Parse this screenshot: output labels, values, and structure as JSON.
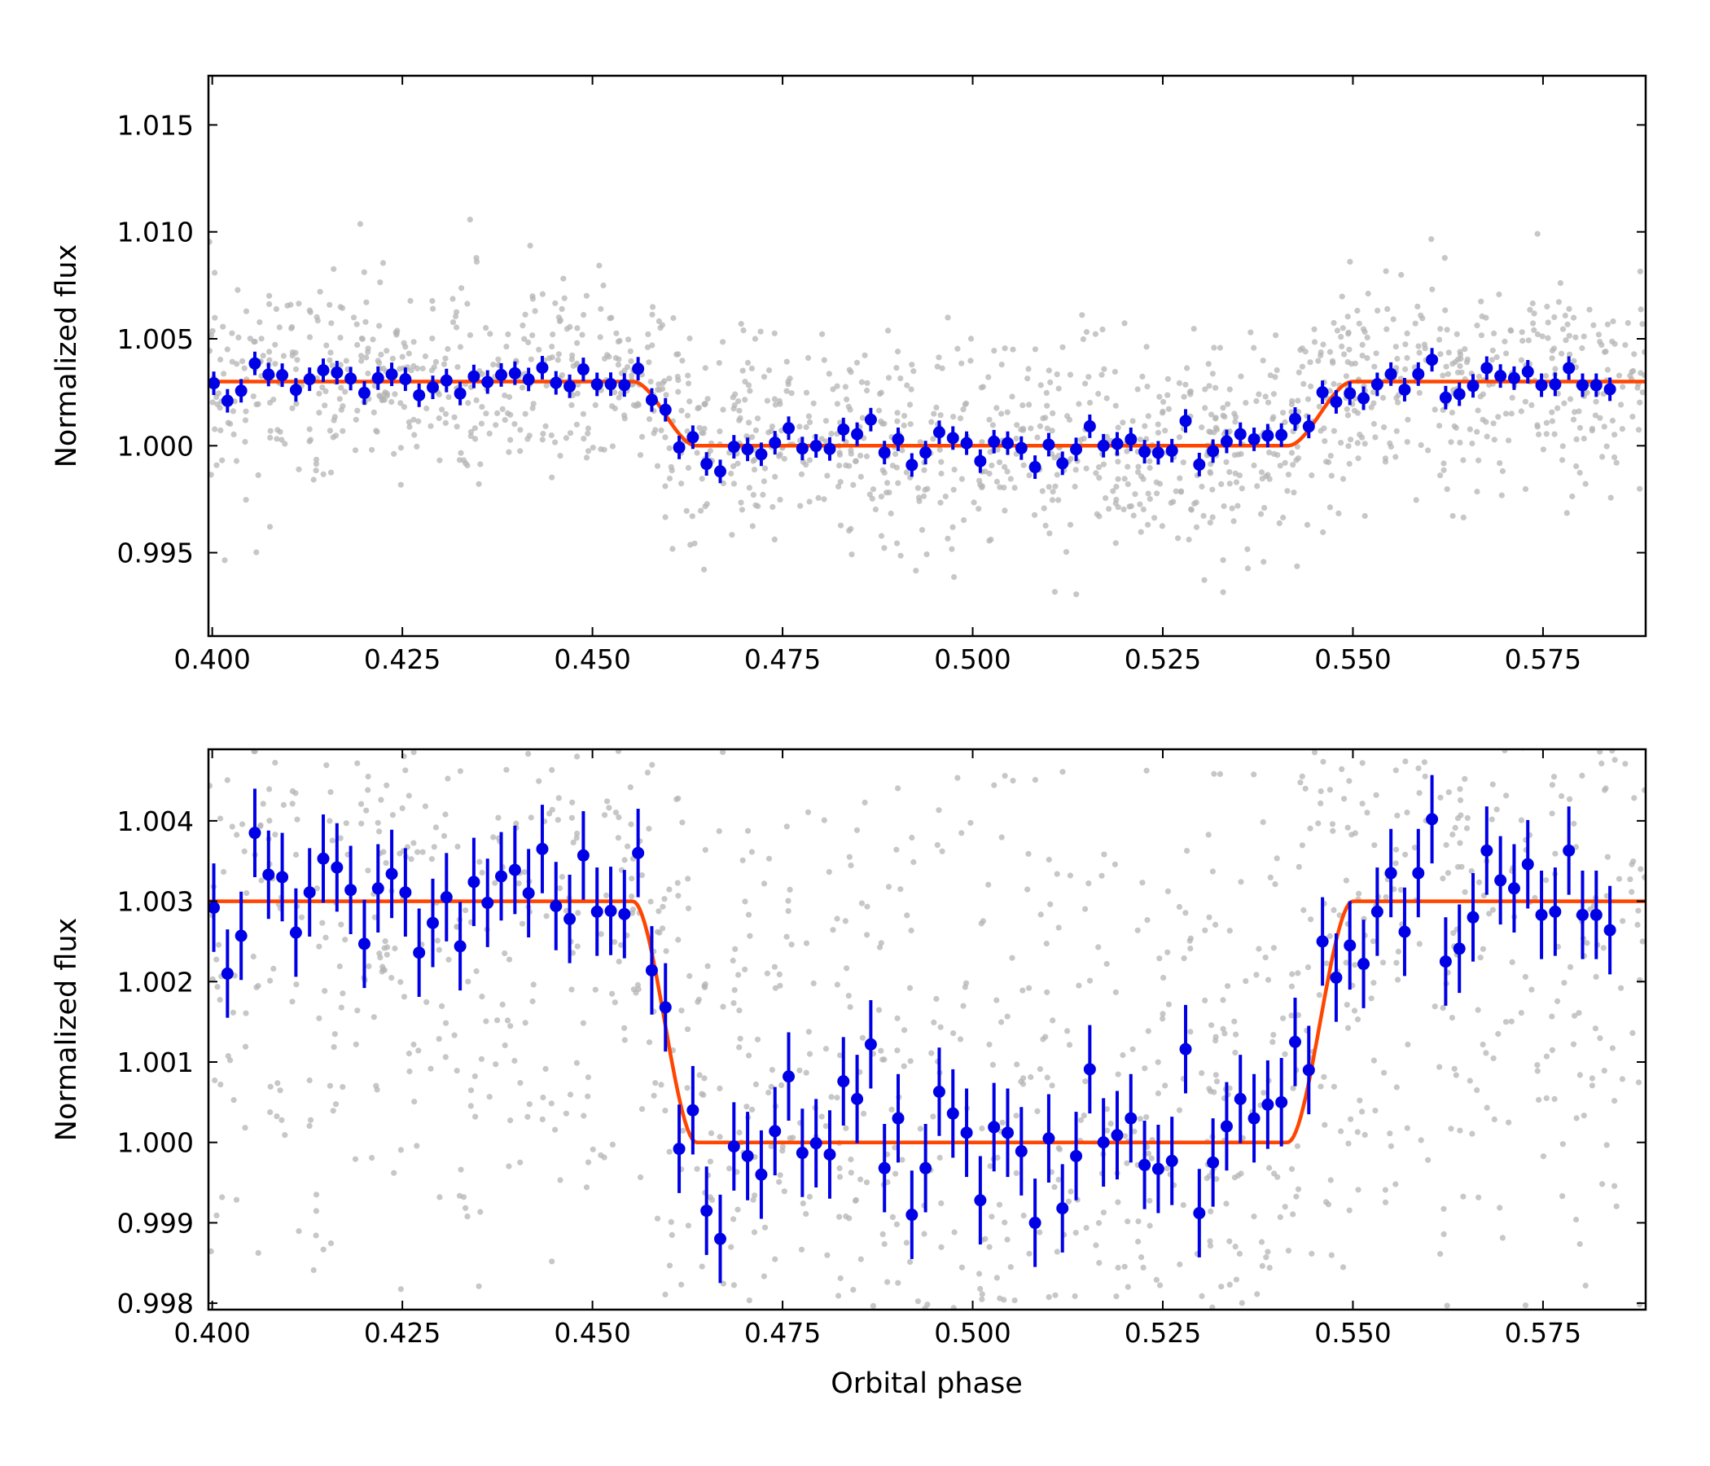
{
  "colors": {
    "background": "#ffffff",
    "raw_points": "#b4b4b4",
    "binned_points": "#0000e6",
    "model_line": "#ff4500",
    "axes": "#000000"
  },
  "chart_data": [
    {
      "type": "scatter",
      "panel": "top",
      "title": "",
      "xlabel": "",
      "ylabel": "Normalized flux",
      "xlim": [
        0.3995,
        0.5885
      ],
      "ylim": [
        0.9911,
        1.0173
      ],
      "xticks": [
        0.4,
        0.425,
        0.45,
        0.475,
        0.5,
        0.525,
        0.55,
        0.575
      ],
      "xtick_labels": [
        "0.400",
        "0.425",
        "0.450",
        "0.475",
        "0.500",
        "0.525",
        "0.550",
        "0.575"
      ],
      "yticks": [
        0.995,
        1.0,
        1.005,
        1.01,
        1.015
      ],
      "ytick_labels": [
        "0.995",
        "1.000",
        "1.005",
        "1.010",
        "1.015"
      ],
      "grid": false,
      "legend": "none",
      "series_style": [
        {
          "kind": "raw photometry",
          "marker": "small grey dots",
          "n_points": 1500
        },
        {
          "kind": "binned data",
          "marker": "blue circles with error bars"
        },
        {
          "kind": "transit model",
          "marker": "orange-red line"
        }
      ]
    },
    {
      "type": "scatter",
      "panel": "bottom",
      "title": "",
      "xlabel": "Orbital phase",
      "ylabel": "Normalized flux",
      "xlim": [
        0.3995,
        0.5885
      ],
      "ylim": [
        0.99792,
        1.00489
      ],
      "xticks": [
        0.4,
        0.425,
        0.45,
        0.475,
        0.5,
        0.525,
        0.55,
        0.575
      ],
      "xtick_labels": [
        "0.400",
        "0.425",
        "0.450",
        "0.475",
        "0.500",
        "0.525",
        "0.550",
        "0.575"
      ],
      "yticks": [
        0.998,
        0.999,
        1.0,
        1.001,
        1.002,
        1.003,
        1.004
      ],
      "ytick_labels": [
        "0.998",
        "0.999",
        "1.000",
        "1.001",
        "1.002",
        "1.003",
        "1.004"
      ],
      "grid": false,
      "legend": "none"
    }
  ],
  "binned_data": {
    "phase": [
      0.4002,
      0.402,
      0.4038,
      0.4056,
      0.4074,
      0.4092,
      0.411,
      0.4128,
      0.4146,
      0.4164,
      0.4182,
      0.42,
      0.4218,
      0.4236,
      0.4254,
      0.4272,
      0.429,
      0.4308,
      0.4326,
      0.4344,
      0.4362,
      0.438,
      0.4398,
      0.4416,
      0.4434,
      0.4452,
      0.447,
      0.4488,
      0.4506,
      0.4524,
      0.4542,
      0.456,
      0.4578,
      0.4596,
      0.4614,
      0.4632,
      0.465,
      0.4668,
      0.4686,
      0.4704,
      0.4722,
      0.474,
      0.4758,
      0.4776,
      0.4794,
      0.4812,
      0.483,
      0.4848,
      0.4866,
      0.4884,
      0.4902,
      0.492,
      0.4938,
      0.4956,
      0.4974,
      0.4992,
      0.501,
      0.5028,
      0.5046,
      0.5064,
      0.5082,
      0.51,
      0.5118,
      0.5136,
      0.5154,
      0.5172,
      0.519,
      0.5208,
      0.5226,
      0.5244,
      0.5262,
      0.528,
      0.5298,
      0.5316,
      0.5334,
      0.5352,
      0.537,
      0.5388,
      0.5406,
      0.5424,
      0.5442,
      0.546,
      0.5478,
      0.5496,
      0.5514,
      0.5532,
      0.555,
      0.5568,
      0.5586,
      0.5604,
      0.5622,
      0.564,
      0.5658,
      0.5676,
      0.5694,
      0.5712,
      0.573,
      0.5748,
      0.5766,
      0.5784,
      0.5802,
      0.582,
      0.5838,
      0.5856
    ],
    "flux": [
      1.00292,
      1.0021,
      1.00257,
      1.00385,
      1.00333,
      1.0033,
      1.00261,
      1.00311,
      1.00353,
      1.00342,
      1.00314,
      1.00247,
      1.00316,
      1.00334,
      1.00311,
      1.00236,
      1.00273,
      1.00305,
      1.00244,
      1.00324,
      1.00298,
      1.00331,
      1.00339,
      1.0031,
      1.00365,
      1.00294,
      1.00278,
      1.00357,
      1.00287,
      1.00288,
      1.00284,
      1.0036,
      1.00214,
      1.00168,
      0.99992,
      1.0004,
      0.99915,
      0.9988,
      0.99995,
      0.99983,
      0.9996,
      1.00014,
      1.00082,
      0.99987,
      0.99999,
      0.99985,
      1.00076,
      1.00054,
      1.00122,
      0.99968,
      1.0003,
      0.9991,
      0.99968,
      1.00063,
      1.00036,
      1.00012,
      0.99928,
      1.00019,
      1.00012,
      0.99989,
      0.999,
      1.00005,
      0.99918,
      0.99983,
      1.00091,
      1.0,
      1.00009,
      1.0003,
      0.99972,
      0.99967,
      0.99977,
      1.00116,
      0.99912,
      0.99975,
      1.0002,
      1.00054,
      1.0003,
      1.00047,
      1.0005,
      1.00125,
      1.0009,
      1.0025,
      1.00205,
      1.00245,
      1.00222,
      1.00287,
      1.00335,
      1.00262,
      1.00335,
      1.00402,
      1.00225,
      1.00241,
      1.0028,
      1.00363,
      1.00326,
      1.00316,
      1.00346,
      1.00283,
      1.00287,
      1.00363,
      1.00283,
      1.00283,
      1.00264
    ],
    "error": 0.00055
  },
  "model": {
    "baseline": 1.003,
    "in_transit": 1.0,
    "ingress_start": 0.4553,
    "ingress_end": 0.4637,
    "egress_start": 0.5414,
    "egress_end": 0.55
  }
}
